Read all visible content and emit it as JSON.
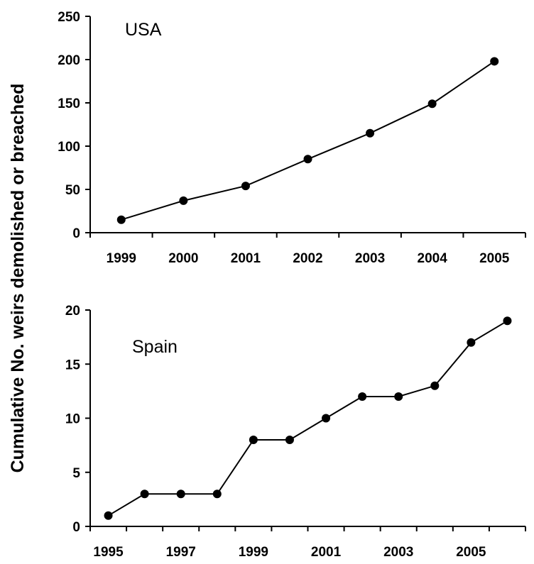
{
  "y_title": "Cumulative No. weirs demolished or breached",
  "chart_data": [
    {
      "type": "line",
      "annotation": "USA",
      "x": [
        1999,
        2000,
        2001,
        2002,
        2003,
        2004,
        2005
      ],
      "values": [
        15,
        37,
        54,
        85,
        115,
        149,
        198
      ],
      "ylim": [
        0,
        250
      ],
      "yticks": [
        0,
        50,
        100,
        150,
        200,
        250
      ],
      "xlim": [
        1998.5,
        2005.5
      ],
      "xticks": [
        1999,
        2000,
        2001,
        2002,
        2003,
        2004,
        2005
      ],
      "grid": false,
      "legend": "none"
    },
    {
      "type": "line",
      "annotation": "Spain",
      "x": [
        1995,
        1996,
        1997,
        1998,
        1999,
        2000,
        2001,
        2002,
        2003,
        2004,
        2005,
        2006
      ],
      "values": [
        1,
        3,
        3,
        3,
        8,
        8,
        10,
        12,
        12,
        13,
        17,
        19
      ],
      "ylim": [
        0,
        20
      ],
      "yticks": [
        0,
        5,
        10,
        15,
        20
      ],
      "xlim": [
        1994.5,
        2006.5
      ],
      "xticks": [
        1995,
        1997,
        1999,
        2001,
        2003,
        2005
      ],
      "grid": false,
      "legend": "none"
    }
  ]
}
